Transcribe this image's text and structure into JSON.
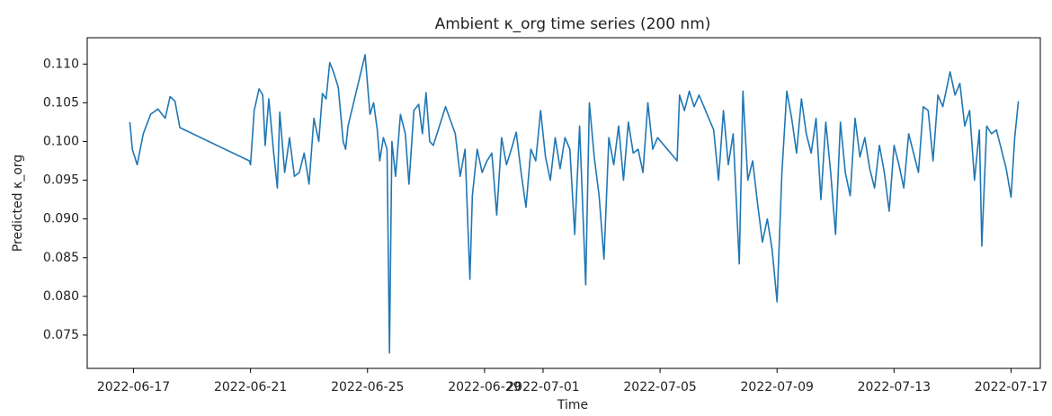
{
  "chart_data": {
    "type": "line",
    "title": "Ambient κ_org time series (200 nm)",
    "x_label": "Time",
    "y_label": "Predicted κ_org",
    "color": "#1f77b4",
    "xlim": [
      "2022-06-15 10:00",
      "2022-07-18 00:00"
    ],
    "xticks": [
      "2022-06-17",
      "2022-06-21",
      "2022-06-25",
      "2022-06-29",
      "2022-07-01",
      "2022-07-05",
      "2022-07-09",
      "2022-07-13",
      "2022-07-17"
    ],
    "ylim": [
      0.0707,
      0.1134
    ],
    "yticks": [
      0.075,
      {
        "value": 0.08,
        "label": "0.080"
      },
      0.085,
      {
        "value": 0.09,
        "label": "0.090"
      },
      0.095,
      {
        "value": 0.1,
        "label": "0.100"
      },
      0.105,
      {
        "value": 0.11,
        "label": "0.110"
      }
    ],
    "grid": false,
    "x": [
      "2022-06-16 21:00",
      "2022-06-16 23:00",
      "2022-06-17 03:00",
      "2022-06-17 08:00",
      "2022-06-17 14:00",
      "2022-06-17 20:00",
      "2022-06-18 02:00",
      "2022-06-18 06:00",
      "2022-06-18 10:00",
      "2022-06-18 14:00",
      "2022-06-20 23:00",
      "2022-06-21 00:00",
      "2022-06-21 03:00",
      "2022-06-21 07:00",
      "2022-06-21 10:00",
      "2022-06-21 12:00",
      "2022-06-21 15:00",
      "2022-06-21 19:00",
      "2022-06-21 22:00",
      "2022-06-22 00:00",
      "2022-06-22 04:00",
      "2022-06-22 08:00",
      "2022-06-22 12:00",
      "2022-06-22 16:00",
      "2022-06-22 20:00",
      "2022-06-23 00:00",
      "2022-06-23 04:00",
      "2022-06-23 08:00",
      "2022-06-23 11:00",
      "2022-06-23 14:00",
      "2022-06-23 17:00",
      "2022-06-23 20:00",
      "2022-06-24 00:00",
      "2022-06-24 04:00",
      "2022-06-24 06:00",
      "2022-06-24 08:00",
      "2022-06-24 22:00",
      "2022-06-25 02:00",
      "2022-06-25 05:00",
      "2022-06-25 08:00",
      "2022-06-25 10:00",
      "2022-06-25 13:00",
      "2022-06-25 16:00",
      "2022-06-25 18:00",
      "2022-06-25 20:00",
      "2022-06-25 23:00",
      "2022-06-26 03:00",
      "2022-06-26 07:00",
      "2022-06-26 10:00",
      "2022-06-26 14:00",
      "2022-06-26 18:00",
      "2022-06-26 21:00",
      "2022-06-27 00:00",
      "2022-06-27 03:00",
      "2022-06-27 06:00",
      "2022-06-27 16:00",
      "2022-06-28 00:00",
      "2022-06-28 04:00",
      "2022-06-28 08:00",
      "2022-06-28 12:00",
      "2022-06-28 14:00",
      "2022-06-28 18:00",
      "2022-06-28 22:00",
      "2022-06-29 02:00",
      "2022-06-29 06:00",
      "2022-06-29 10:00",
      "2022-06-29 14:00",
      "2022-06-29 18:00",
      "2022-06-29 22:00",
      "2022-06-30 02:00",
      "2022-06-30 06:00",
      "2022-06-30 10:00",
      "2022-06-30 14:00",
      "2022-06-30 18:00",
      "2022-06-30 22:00",
      "2022-07-01 02:00",
      "2022-07-01 06:00",
      "2022-07-01 10:00",
      "2022-07-01 14:00",
      "2022-07-01 18:00",
      "2022-07-01 22:00",
      "2022-07-02 02:00",
      "2022-07-02 06:00",
      "2022-07-02 11:00",
      "2022-07-02 14:00",
      "2022-07-02 18:00",
      "2022-07-02 22:00",
      "2022-07-03 02:00",
      "2022-07-03 06:00",
      "2022-07-03 10:00",
      "2022-07-03 14:00",
      "2022-07-03 18:00",
      "2022-07-03 22:00",
      "2022-07-04 02:00",
      "2022-07-04 06:00",
      "2022-07-04 10:00",
      "2022-07-04 14:00",
      "2022-07-04 18:00",
      "2022-07-04 22:00",
      "2022-07-05 14:00",
      "2022-07-05 16:00",
      "2022-07-05 20:00",
      "2022-07-06 00:00",
      "2022-07-06 04:00",
      "2022-07-06 08:00",
      "2022-07-06 12:00",
      "2022-07-06 16:00",
      "2022-07-06 20:00",
      "2022-07-07 00:00",
      "2022-07-07 04:00",
      "2022-07-07 08:00",
      "2022-07-07 12:00",
      "2022-07-07 17:00",
      "2022-07-07 20:00",
      "2022-07-08 00:00",
      "2022-07-08 04:00",
      "2022-07-08 08:00",
      "2022-07-08 12:00",
      "2022-07-08 16:00",
      "2022-07-08 20:00",
      "2022-07-09 00:00",
      "2022-07-09 04:00",
      "2022-07-09 08:00",
      "2022-07-09 12:00",
      "2022-07-09 16:00",
      "2022-07-09 20:00",
      "2022-07-10 00:00",
      "2022-07-10 04:00",
      "2022-07-10 08:00",
      "2022-07-10 12:00",
      "2022-07-10 16:00",
      "2022-07-10 20:00",
      "2022-07-11 00:00",
      "2022-07-11 04:00",
      "2022-07-11 08:00",
      "2022-07-11 12:00",
      "2022-07-11 16:00",
      "2022-07-11 20:00",
      "2022-07-12 00:00",
      "2022-07-12 04:00",
      "2022-07-12 08:00",
      "2022-07-12 12:00",
      "2022-07-12 16:00",
      "2022-07-12 20:00",
      "2022-07-13 00:00",
      "2022-07-13 04:00",
      "2022-07-13 08:00",
      "2022-07-13 12:00",
      "2022-07-13 16:00",
      "2022-07-13 20:00",
      "2022-07-14 00:00",
      "2022-07-14 04:00",
      "2022-07-14 08:00",
      "2022-07-14 12:00",
      "2022-07-14 16:00",
      "2022-07-14 22:00",
      "2022-07-15 02:00",
      "2022-07-15 06:00",
      "2022-07-15 10:00",
      "2022-07-15 14:00",
      "2022-07-15 18:00",
      "2022-07-15 22:00",
      "2022-07-16 00:00",
      "2022-07-16 04:00",
      "2022-07-16 08:00",
      "2022-07-16 12:00",
      "2022-07-16 16:00",
      "2022-07-16 20:00",
      "2022-07-17 00:00",
      "2022-07-17 03:00",
      "2022-07-17 06:00"
    ],
    "values": [
      0.1025,
      0.099,
      0.097,
      0.101,
      0.1035,
      0.1042,
      0.103,
      0.1058,
      0.1052,
      0.1018,
      0.0975,
      0.097,
      0.104,
      0.1068,
      0.106,
      0.0995,
      0.1055,
      0.0985,
      0.094,
      0.1038,
      0.096,
      0.1005,
      0.0955,
      0.096,
      0.0985,
      0.0945,
      0.103,
      0.1,
      0.1062,
      0.1055,
      0.1102,
      0.109,
      0.107,
      0.1,
      0.099,
      0.102,
      0.1112,
      0.1035,
      0.105,
      0.1015,
      0.0975,
      0.1005,
      0.099,
      0.0727,
      0.1,
      0.0955,
      0.1035,
      0.101,
      0.0945,
      0.104,
      0.1048,
      0.101,
      0.1063,
      0.1,
      0.0995,
      0.1045,
      0.101,
      0.0955,
      0.099,
      0.0822,
      0.093,
      0.099,
      0.096,
      0.0975,
      0.0985,
      0.0905,
      0.1005,
      0.097,
      0.099,
      0.1012,
      0.096,
      0.0915,
      0.099,
      0.0975,
      0.104,
      0.098,
      0.095,
      0.1005,
      0.0965,
      0.1005,
      0.099,
      0.088,
      0.102,
      0.0815,
      0.105,
      0.098,
      0.093,
      0.0848,
      0.1005,
      0.097,
      0.102,
      0.095,
      0.1025,
      0.0985,
      0.099,
      0.096,
      0.105,
      0.099,
      0.1005,
      0.0975,
      0.106,
      0.104,
      0.1065,
      0.1045,
      0.106,
      0.1045,
      0.103,
      0.1015,
      0.095,
      0.104,
      0.097,
      0.101,
      0.0842,
      0.1065,
      0.095,
      0.0975,
      0.092,
      0.087,
      0.09,
      0.086,
      0.0793,
      0.096,
      0.1065,
      0.103,
      0.0985,
      0.1055,
      0.101,
      0.0985,
      0.103,
      0.0925,
      0.1025,
      0.096,
      0.088,
      0.1025,
      0.096,
      0.093,
      0.103,
      0.098,
      0.1005,
      0.0965,
      0.094,
      0.0995,
      0.096,
      0.091,
      0.0995,
      0.097,
      0.094,
      0.101,
      0.0985,
      0.096,
      0.1045,
      0.104,
      0.0975,
      0.106,
      0.1045,
      0.109,
      0.106,
      0.1075,
      0.102,
      0.104,
      0.095,
      0.1015,
      0.0865,
      0.102,
      0.101,
      0.1015,
      0.099,
      0.0965,
      0.0928,
      0.1005,
      0.1052
    ]
  }
}
